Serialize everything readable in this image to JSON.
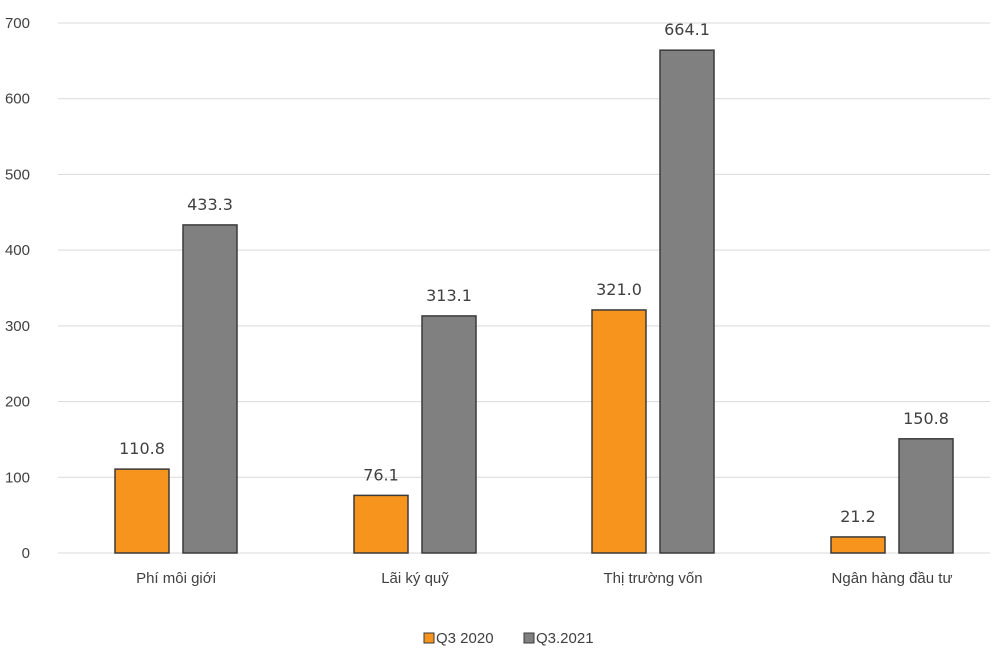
{
  "chart_data": {
    "type": "bar",
    "title": "",
    "xlabel": "",
    "ylabel": "",
    "ylim": [
      0,
      700
    ],
    "yticks": [
      0,
      100,
      200,
      300,
      400,
      500,
      600,
      700
    ],
    "grid": true,
    "legend_position": "bottom",
    "categories": [
      "Phí môi giới",
      "Lãi ký quỹ",
      "Thị trường vốn",
      "Ngân hàng đầu tư"
    ],
    "series": [
      {
        "name": "Q3 2020",
        "color": "#f7941d",
        "values": [
          110.8,
          76.1,
          321.0,
          21.2
        ],
        "labels": [
          "110.8",
          "76.1",
          "321.0",
          "21.2"
        ]
      },
      {
        "name": "Q3.2021",
        "color": "#808080",
        "values": [
          433.3,
          313.1,
          664.1,
          150.8
        ],
        "labels": [
          "433.3",
          "313.1",
          "664.1",
          "150.8"
        ]
      }
    ]
  }
}
